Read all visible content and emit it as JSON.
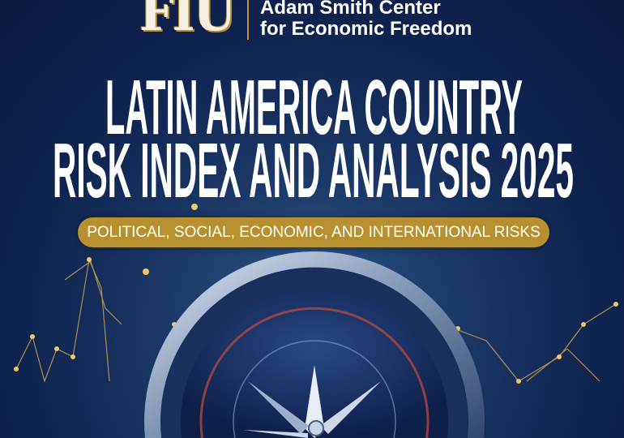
{
  "logo": {
    "mark": "FIU",
    "line1": "Adam Smith Center",
    "line2": "for Economic Freedom"
  },
  "title": {
    "line1": "LATIN AMERICA COUNTRY",
    "line2": "RISK INDEX AND ANALYSIS 2025"
  },
  "subtitle": "POLITICAL, SOCIAL, ECONOMIC, AND INTERNATIONAL RISKS",
  "colors": {
    "navy": "#0f2350",
    "gold": "#b8902f",
    "text": "#ffffff"
  }
}
